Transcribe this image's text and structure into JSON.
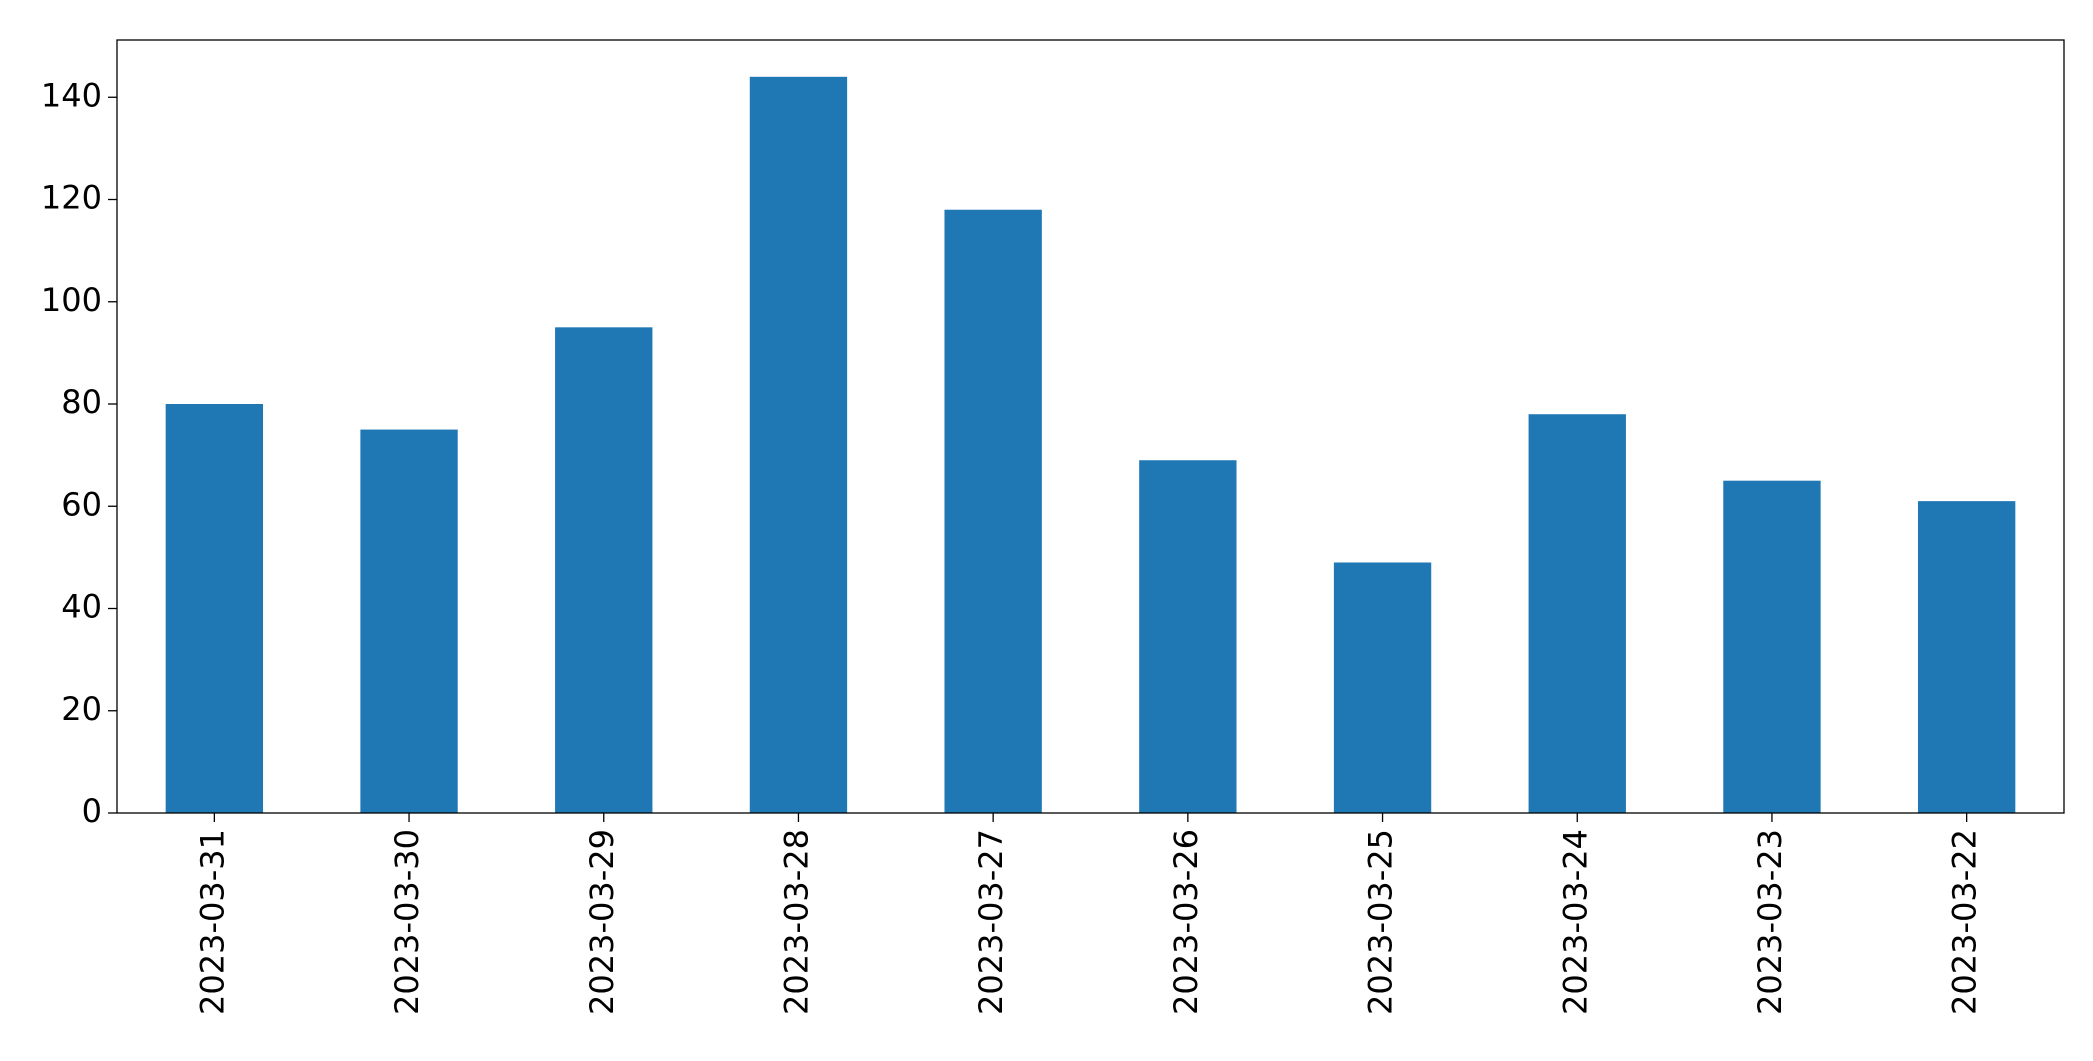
{
  "chart_data": {
    "type": "bar",
    "categories": [
      "2023-03-31",
      "2023-03-30",
      "2023-03-29",
      "2023-03-28",
      "2023-03-27",
      "2023-03-26",
      "2023-03-25",
      "2023-03-24",
      "2023-03-23",
      "2023-03-22"
    ],
    "values": [
      80,
      75,
      95,
      144,
      118,
      69,
      49,
      78,
      65,
      61
    ],
    "color": "#1f77b4",
    "ylim": [
      0,
      151.2
    ],
    "yticks": [
      0,
      20,
      40,
      60,
      80,
      100,
      120,
      140
    ],
    "grid": false
  }
}
